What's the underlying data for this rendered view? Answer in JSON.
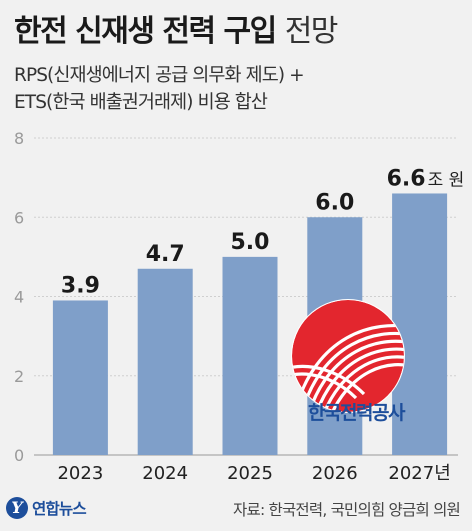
{
  "header": {
    "title_bold": "한전 신재생 전력 구입",
    "title_light": "전망",
    "subtitle_line1": "RPS(신재생에너지 공급 의무화 제도) +",
    "subtitle_line2": "ETS(한국 배출권거래제) 비용 합산"
  },
  "logo": {
    "kepco_name": "한국전력공사",
    "kepco_icon": "kepco-logo-icon",
    "brand_color": "#e3262e"
  },
  "footer": {
    "agency_mark": "Y",
    "agency_name": "연합뉴스",
    "source": "자료: 한국전력, 국민의힘 양금희 의원"
  },
  "chart_data": {
    "type": "bar",
    "categories": [
      "2023",
      "2024",
      "2025",
      "2026",
      "2027년"
    ],
    "values": [
      3.9,
      4.7,
      5.0,
      6.0,
      6.6
    ],
    "value_labels": [
      "3.9",
      "4.7",
      "5.0",
      "6.0",
      "6.6"
    ],
    "last_value_unit": "조 원",
    "ylim": [
      0,
      8
    ],
    "yticks": [
      "0",
      "2",
      "4",
      "6",
      "8"
    ],
    "grid": true,
    "bar_color": "#7f9fc9"
  }
}
